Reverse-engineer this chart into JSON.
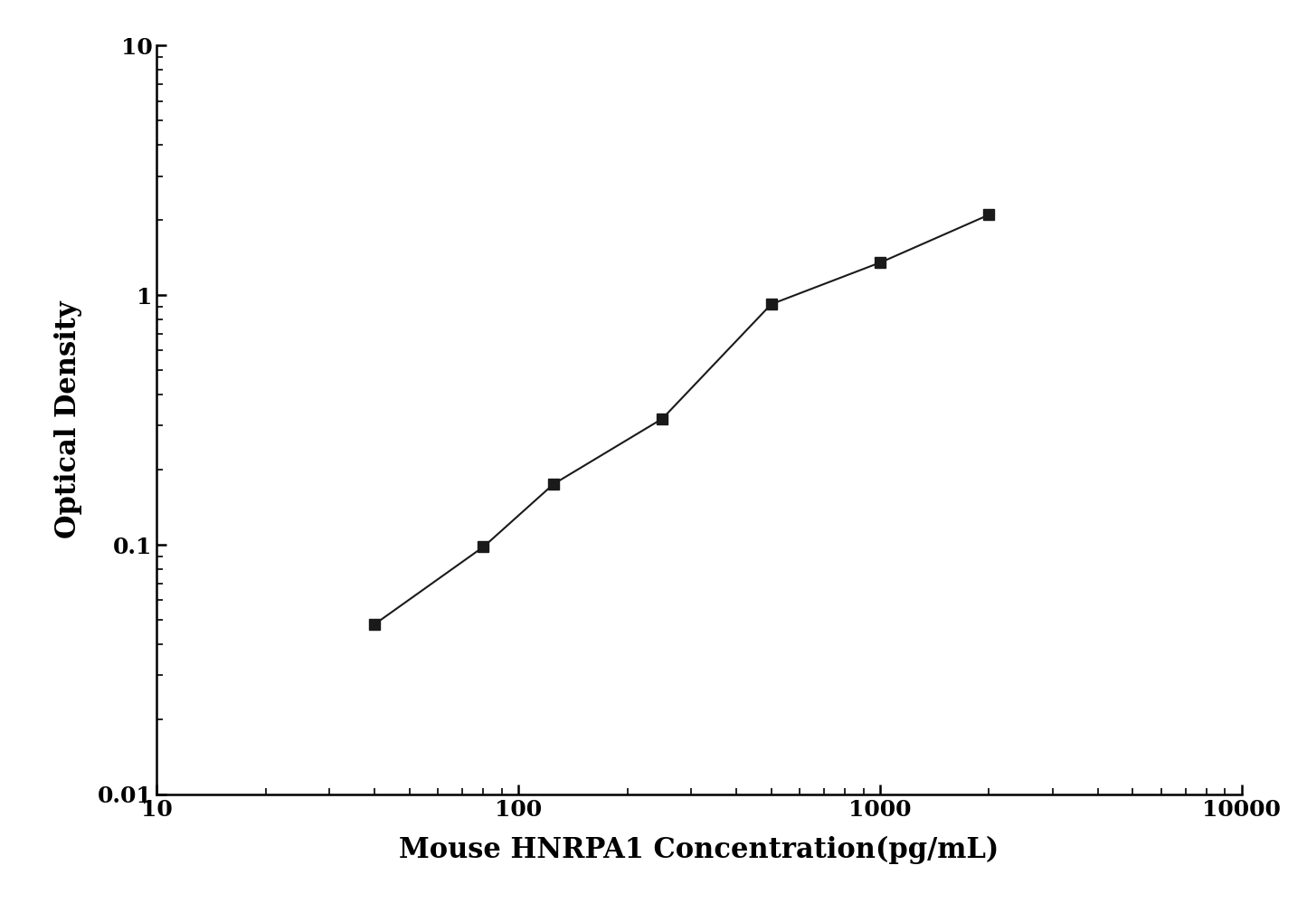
{
  "x_data": [
    40,
    80,
    125,
    250,
    500,
    1000,
    2000
  ],
  "y_data": [
    0.048,
    0.098,
    0.175,
    0.32,
    0.92,
    1.35,
    2.1
  ],
  "xlabel": "Mouse HNRPA1 Concentration(pg/mL)",
  "ylabel": "Optical Density",
  "xlim": [
    10,
    10000
  ],
  "ylim": [
    0.01,
    10
  ],
  "line_color": "#1a1a1a",
  "marker_color": "#1a1a1a",
  "marker": "s",
  "marker_size": 8,
  "line_width": 1.5,
  "xlabel_fontsize": 22,
  "ylabel_fontsize": 22,
  "tick_fontsize": 18,
  "background_color": "#ffffff",
  "x_ticks": [
    10,
    100,
    1000,
    10000
  ],
  "x_tick_labels": [
    "10",
    "100",
    "1000",
    "10000"
  ],
  "y_ticks": [
    0.01,
    0.1,
    1,
    10
  ],
  "y_tick_labels": [
    "0.01",
    "0.1",
    "1",
    "10"
  ]
}
